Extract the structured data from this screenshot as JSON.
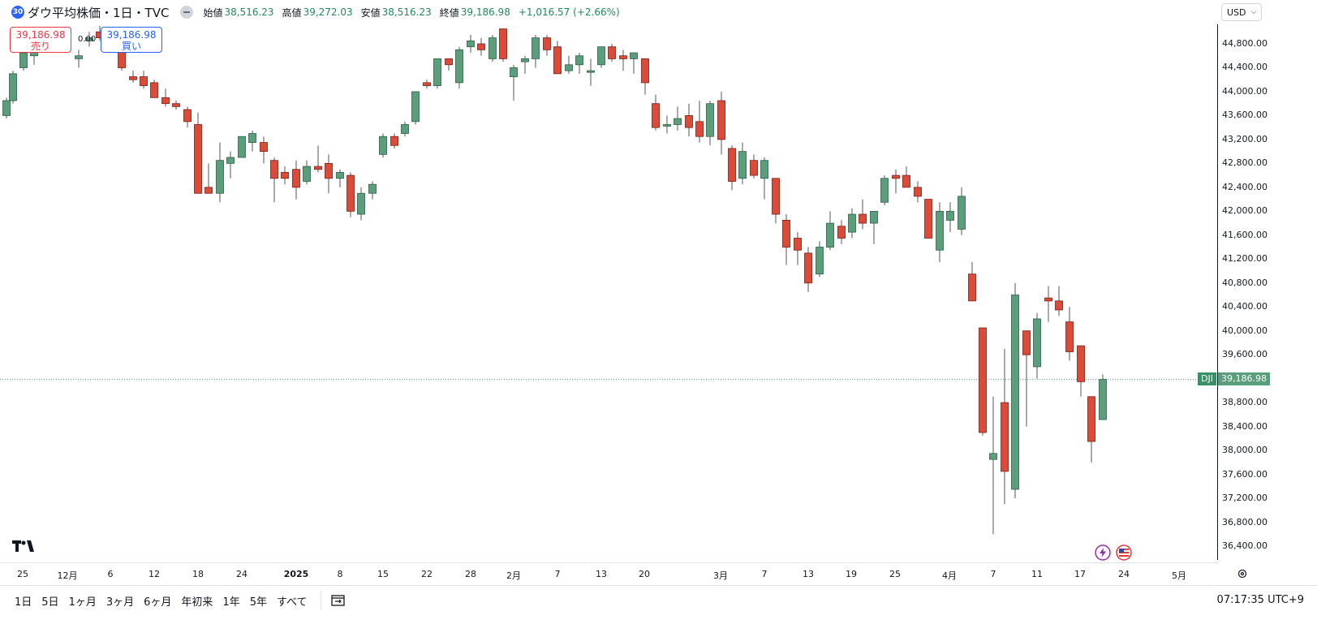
{
  "header": {
    "badge": "30",
    "title": "ダウ平均株価・1日・TVC",
    "ohlc": [
      {
        "label": "始値",
        "value": "38,516.23"
      },
      {
        "label": "高値",
        "value": "39,272.03"
      },
      {
        "label": "安値",
        "value": "38,516.23"
      },
      {
        "label": "終値",
        "value": "39,186.98"
      }
    ],
    "change": "+1,016.57 (+2.66%)"
  },
  "trade": {
    "sell_price": "39,186.98",
    "sell_label": "売り",
    "buy_price": "39,186.98",
    "buy_label": "買い",
    "spread": "0.00"
  },
  "currency_button": "USD",
  "price_axis": [
    "44,800.00",
    "44,400.00",
    "44,000.00",
    "43,600.00",
    "43,200.00",
    "42,800.00",
    "42,400.00",
    "42,000.00",
    "41,600.00",
    "41,200.00",
    "40,800.00",
    "40,400.00",
    "40,000.00",
    "39,600.00",
    "38,800.00",
    "38,400.00",
    "38,000.00",
    "37,600.00",
    "37,200.00",
    "36,800.00",
    "36,400.00"
  ],
  "last_price": {
    "symbol": "DJI",
    "value": "39,186.98"
  },
  "time_axis": [
    {
      "label": "25",
      "x": 28
    },
    {
      "label": "12月",
      "x": 83
    },
    {
      "label": "6",
      "x": 136
    },
    {
      "label": "12",
      "x": 190
    },
    {
      "label": "18",
      "x": 244
    },
    {
      "label": "24",
      "x": 298
    },
    {
      "label": "2025",
      "x": 365,
      "bold": true
    },
    {
      "label": "8",
      "x": 419
    },
    {
      "label": "15",
      "x": 472
    },
    {
      "label": "22",
      "x": 526
    },
    {
      "label": "28",
      "x": 580
    },
    {
      "label": "2月",
      "x": 633
    },
    {
      "label": "7",
      "x": 687
    },
    {
      "label": "13",
      "x": 741
    },
    {
      "label": "20",
      "x": 794
    },
    {
      "label": "3月",
      "x": 888
    },
    {
      "label": "7",
      "x": 942
    },
    {
      "label": "13",
      "x": 996
    },
    {
      "label": "19",
      "x": 1049
    },
    {
      "label": "25",
      "x": 1103
    },
    {
      "label": "4月",
      "x": 1170
    },
    {
      "label": "7",
      "x": 1224
    },
    {
      "label": "11",
      "x": 1278
    },
    {
      "label": "17",
      "x": 1331
    },
    {
      "label": "24",
      "x": 1385
    },
    {
      "label": "5月",
      "x": 1453
    }
  ],
  "ranges": [
    "1日",
    "5日",
    "1ヶ月",
    "3ヶ月",
    "6ヶ月",
    "年初来",
    "1年",
    "5年",
    "すべて"
  ],
  "clock": "07:17:35 UTC+9",
  "colors": {
    "up": "#5a9e7c",
    "down": "#db4b3a",
    "up_stroke": "#2e5e44",
    "down_stroke": "#7a1d12"
  },
  "chart_data": {
    "type": "candlestick",
    "ylim": [
      36250,
      45150
    ],
    "candles": [
      {
        "x": 8,
        "o": 43600,
        "h": 43900,
        "l": 43550,
        "c": 43850
      },
      {
        "x": 16,
        "o": 43850,
        "h": 44350,
        "l": 43800,
        "c": 44300
      },
      {
        "x": 29,
        "o": 44400,
        "h": 44700,
        "l": 44350,
        "c": 44650
      },
      {
        "x": 42,
        "o": 44600,
        "h": 44950,
        "l": 44450,
        "c": 44900
      },
      {
        "x": 97,
        "o": 44550,
        "h": 44700,
        "l": 44400,
        "c": 44600
      },
      {
        "x": 110,
        "o": 44850,
        "h": 45000,
        "l": 44750,
        "c": 44900
      },
      {
        "x": 123,
        "o": 45000,
        "h": 45100,
        "l": 44850,
        "c": 44900
      },
      {
        "x": 150,
        "o": 44850,
        "h": 44950,
        "l": 44350,
        "c": 44400
      },
      {
        "x": 164,
        "o": 44250,
        "h": 44350,
        "l": 44150,
        "c": 44200
      },
      {
        "x": 177,
        "o": 44250,
        "h": 44350,
        "l": 44050,
        "c": 44100
      },
      {
        "x": 190,
        "o": 44150,
        "h": 44200,
        "l": 43900,
        "c": 43900
      },
      {
        "x": 204,
        "o": 43900,
        "h": 44050,
        "l": 43750,
        "c": 43800
      },
      {
        "x": 217,
        "o": 43800,
        "h": 43850,
        "l": 43700,
        "c": 43750
      },
      {
        "x": 231,
        "o": 43700,
        "h": 43750,
        "l": 43400,
        "c": 43500
      },
      {
        "x": 244,
        "o": 43450,
        "h": 43650,
        "l": 42350,
        "c": 42300
      },
      {
        "x": 257,
        "o": 42400,
        "h": 42800,
        "l": 42300,
        "c": 42300
      },
      {
        "x": 271,
        "o": 42300,
        "h": 43150,
        "l": 42150,
        "c": 42850
      },
      {
        "x": 284,
        "o": 42800,
        "h": 43000,
        "l": 42550,
        "c": 42900
      },
      {
        "x": 298,
        "o": 42900,
        "h": 43250,
        "l": 42900,
        "c": 43250
      },
      {
        "x": 311,
        "o": 43150,
        "h": 43350,
        "l": 43000,
        "c": 43300
      },
      {
        "x": 325,
        "o": 43150,
        "h": 43250,
        "l": 42800,
        "c": 43000
      },
      {
        "x": 338,
        "o": 42850,
        "h": 42900,
        "l": 42150,
        "c": 42550
      },
      {
        "x": 351,
        "o": 42650,
        "h": 42750,
        "l": 42450,
        "c": 42550
      },
      {
        "x": 365,
        "o": 42700,
        "h": 42850,
        "l": 42200,
        "c": 42400
      },
      {
        "x": 378,
        "o": 42500,
        "h": 42850,
        "l": 42450,
        "c": 42750
      },
      {
        "x": 392,
        "o": 42750,
        "h": 43100,
        "l": 42650,
        "c": 42700
      },
      {
        "x": 405,
        "o": 42800,
        "h": 42950,
        "l": 42300,
        "c": 42550
      },
      {
        "x": 419,
        "o": 42550,
        "h": 42700,
        "l": 42400,
        "c": 42650
      },
      {
        "x": 432,
        "o": 42600,
        "h": 42650,
        "l": 41900,
        "c": 42000
      },
      {
        "x": 445,
        "o": 41950,
        "h": 42400,
        "l": 41850,
        "c": 42300
      },
      {
        "x": 459,
        "o": 42300,
        "h": 42500,
        "l": 42200,
        "c": 42450
      },
      {
        "x": 472,
        "o": 42950,
        "h": 43300,
        "l": 42900,
        "c": 43250
      },
      {
        "x": 486,
        "o": 43250,
        "h": 43300,
        "l": 43050,
        "c": 43100
      },
      {
        "x": 499,
        "o": 43300,
        "h": 43500,
        "l": 43250,
        "c": 43450
      },
      {
        "x": 512,
        "o": 43500,
        "h": 44000,
        "l": 43450,
        "c": 44000
      },
      {
        "x": 526,
        "o": 44150,
        "h": 44200,
        "l": 44050,
        "c": 44100
      },
      {
        "x": 539,
        "o": 44100,
        "h": 44550,
        "l": 44050,
        "c": 44550
      },
      {
        "x": 553,
        "o": 44550,
        "h": 44550,
        "l": 44350,
        "c": 44450
      },
      {
        "x": 566,
        "o": 44150,
        "h": 44750,
        "l": 44050,
        "c": 44700
      },
      {
        "x": 580,
        "o": 44750,
        "h": 44950,
        "l": 44650,
        "c": 44850
      },
      {
        "x": 593,
        "o": 44800,
        "h": 44900,
        "l": 44600,
        "c": 44700
      },
      {
        "x": 607,
        "o": 44550,
        "h": 44950,
        "l": 44500,
        "c": 44900
      },
      {
        "x": 620,
        "o": 45050,
        "h": 45050,
        "l": 44500,
        "c": 44550
      },
      {
        "x": 633,
        "o": 44250,
        "h": 44450,
        "l": 43850,
        "c": 44400
      },
      {
        "x": 647,
        "o": 44500,
        "h": 44600,
        "l": 44300,
        "c": 44550
      },
      {
        "x": 660,
        "o": 44550,
        "h": 44950,
        "l": 44400,
        "c": 44900
      },
      {
        "x": 674,
        "o": 44900,
        "h": 44950,
        "l": 44600,
        "c": 44700
      },
      {
        "x": 687,
        "o": 44750,
        "h": 44850,
        "l": 44300,
        "c": 44300
      },
      {
        "x": 701,
        "o": 44350,
        "h": 44600,
        "l": 44300,
        "c": 44450
      },
      {
        "x": 714,
        "o": 44450,
        "h": 44650,
        "l": 44300,
        "c": 44600
      },
      {
        "x": 728,
        "o": 44350,
        "h": 44550,
        "l": 44100,
        "c": 44350
      },
      {
        "x": 741,
        "o": 44450,
        "h": 44750,
        "l": 44400,
        "c": 44750
      },
      {
        "x": 754,
        "o": 44750,
        "h": 44800,
        "l": 44500,
        "c": 44550
      },
      {
        "x": 768,
        "o": 44600,
        "h": 44700,
        "l": 44350,
        "c": 44550
      },
      {
        "x": 781,
        "o": 44550,
        "h": 44650,
        "l": 44300,
        "c": 44650
      },
      {
        "x": 795,
        "o": 44550,
        "h": 44550,
        "l": 43950,
        "c": 44150
      },
      {
        "x": 808,
        "o": 43800,
        "h": 43950,
        "l": 43350,
        "c": 43400
      },
      {
        "x": 822,
        "o": 43450,
        "h": 43600,
        "l": 43300,
        "c": 43450
      },
      {
        "x": 835,
        "o": 43450,
        "h": 43750,
        "l": 43350,
        "c": 43550
      },
      {
        "x": 849,
        "o": 43600,
        "h": 43800,
        "l": 43250,
        "c": 43400
      },
      {
        "x": 862,
        "o": 43500,
        "h": 43850,
        "l": 43150,
        "c": 43250
      },
      {
        "x": 875,
        "o": 43250,
        "h": 43850,
        "l": 43100,
        "c": 43800
      },
      {
        "x": 889,
        "o": 43850,
        "h": 44000,
        "l": 42950,
        "c": 43200
      },
      {
        "x": 902,
        "o": 43050,
        "h": 43100,
        "l": 42350,
        "c": 42500
      },
      {
        "x": 915,
        "o": 42550,
        "h": 43150,
        "l": 42450,
        "c": 43000
      },
      {
        "x": 929,
        "o": 42850,
        "h": 42950,
        "l": 42550,
        "c": 42600
      },
      {
        "x": 942,
        "o": 42550,
        "h": 42900,
        "l": 42200,
        "c": 42850
      },
      {
        "x": 956,
        "o": 42550,
        "h": 42550,
        "l": 41800,
        "c": 41950
      },
      {
        "x": 969,
        "o": 41850,
        "h": 41950,
        "l": 41100,
        "c": 41400
      },
      {
        "x": 983,
        "o": 41550,
        "h": 41650,
        "l": 41100,
        "c": 41350
      },
      {
        "x": 996,
        "o": 41300,
        "h": 41400,
        "l": 40650,
        "c": 40800
      },
      {
        "x": 1010,
        "o": 40950,
        "h": 41500,
        "l": 40900,
        "c": 41400
      },
      {
        "x": 1023,
        "o": 41400,
        "h": 42000,
        "l": 41350,
        "c": 41800
      },
      {
        "x": 1037,
        "o": 41750,
        "h": 41850,
        "l": 41450,
        "c": 41550
      },
      {
        "x": 1050,
        "o": 41650,
        "h": 42050,
        "l": 41550,
        "c": 41950
      },
      {
        "x": 1063,
        "o": 41950,
        "h": 42200,
        "l": 41700,
        "c": 41800
      },
      {
        "x": 1077,
        "o": 41800,
        "h": 42000,
        "l": 41450,
        "c": 42000
      },
      {
        "x": 1090,
        "o": 42150,
        "h": 42600,
        "l": 42100,
        "c": 42550
      },
      {
        "x": 1104,
        "o": 42600,
        "h": 42700,
        "l": 42300,
        "c": 42550
      },
      {
        "x": 1117,
        "o": 42600,
        "h": 42750,
        "l": 42400,
        "c": 42400
      },
      {
        "x": 1131,
        "o": 42400,
        "h": 42500,
        "l": 42150,
        "c": 42250
      },
      {
        "x": 1144,
        "o": 42200,
        "h": 42200,
        "l": 41550,
        "c": 41550
      },
      {
        "x": 1158,
        "o": 41350,
        "h": 42150,
        "l": 41150,
        "c": 42000
      },
      {
        "x": 1171,
        "o": 41850,
        "h": 42150,
        "l": 41650,
        "c": 42000
      },
      {
        "x": 1185,
        "o": 41700,
        "h": 42400,
        "l": 41600,
        "c": 42250
      },
      {
        "x": 1198,
        "o": 40950,
        "h": 41150,
        "l": 40500,
        "c": 40500
      },
      {
        "x": 1211,
        "o": 40050,
        "h": 40050,
        "l": 38250,
        "c": 38300
      },
      {
        "x": 1224,
        "o": 37850,
        "h": 38900,
        "l": 36600,
        "c": 37950
      },
      {
        "x": 1238,
        "o": 38800,
        "h": 39700,
        "l": 37100,
        "c": 37650
      },
      {
        "x": 1251,
        "o": 37350,
        "h": 40800,
        "l": 37200,
        "c": 40600
      },
      {
        "x": 1265,
        "o": 40000,
        "h": 40000,
        "l": 38400,
        "c": 39600
      },
      {
        "x": 1278,
        "o": 39400,
        "h": 40300,
        "l": 39200,
        "c": 40200
      },
      {
        "x": 1292,
        "o": 40550,
        "h": 40750,
        "l": 40150,
        "c": 40500
      },
      {
        "x": 1305,
        "o": 40500,
        "h": 40750,
        "l": 40250,
        "c": 40350
      },
      {
        "x": 1318,
        "o": 40150,
        "h": 40400,
        "l": 39500,
        "c": 39650
      },
      {
        "x": 1332,
        "o": 39750,
        "h": 39750,
        "l": 38900,
        "c": 39150
      },
      {
        "x": 1345,
        "o": 38900,
        "h": 38900,
        "l": 37800,
        "c": 38150
      },
      {
        "x": 1359,
        "o": 38516.23,
        "h": 39272.03,
        "l": 38516.23,
        "c": 39186.98
      }
    ]
  }
}
